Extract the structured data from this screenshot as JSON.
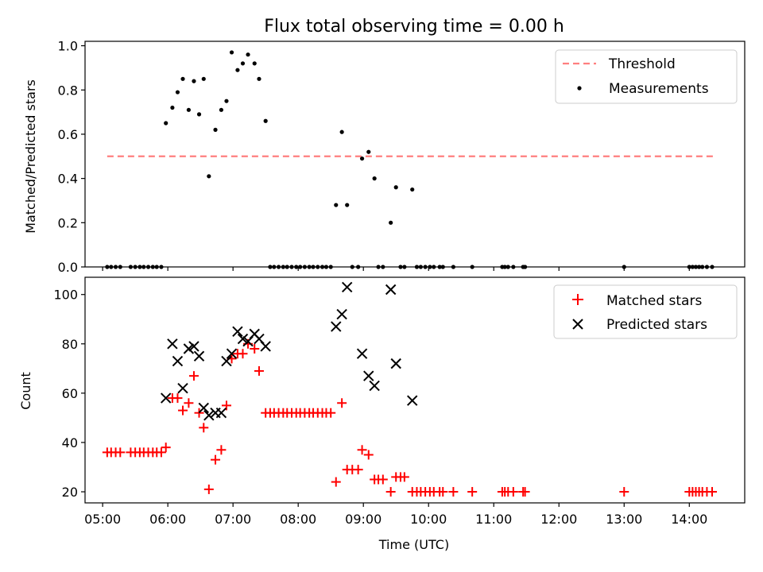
{
  "chart_data": [
    {
      "type": "scatter",
      "title": "Flux total observing time = 0.00 h",
      "xlabel": "",
      "ylabel": "Matched/Predicted stars",
      "xlim": [
        4.73,
        14.85
      ],
      "ylim": [
        0.0,
        1.02
      ],
      "yticks": [
        0.0,
        0.2,
        0.4,
        0.6,
        0.8,
        1.0
      ],
      "ytick_labels": [
        "0.0",
        "0.2",
        "0.4",
        "0.6",
        "0.8",
        "1.0"
      ],
      "xticks": [
        5,
        6,
        7,
        8,
        9,
        10,
        11,
        12,
        13,
        14
      ],
      "legend_position": "top-right",
      "threshold": {
        "name": "Threshold",
        "color": "#ff7f7f",
        "value": 0.5,
        "x_range": [
          5.07,
          14.37
        ]
      },
      "series": [
        {
          "name": "Measurements",
          "marker": "dot",
          "color": "#000000",
          "x": [
            5.07,
            5.13,
            5.2,
            5.27,
            5.43,
            5.5,
            5.57,
            5.63,
            5.7,
            5.77,
            5.83,
            5.9,
            5.97,
            6.07,
            6.15,
            6.23,
            6.32,
            6.4,
            6.48,
            6.55,
            6.63,
            6.73,
            6.82,
            6.9,
            6.98,
            7.07,
            7.15,
            7.23,
            7.33,
            7.4,
            7.5,
            7.57,
            7.63,
            7.7,
            7.77,
            7.83,
            7.9,
            7.97,
            8.03,
            8.1,
            8.17,
            8.23,
            8.3,
            8.37,
            8.43,
            8.5,
            8.58,
            8.67,
            8.75,
            8.83,
            8.92,
            8.98,
            9.08,
            9.17,
            9.23,
            9.3,
            9.42,
            9.5,
            9.57,
            9.63,
            9.75,
            9.82,
            9.88,
            9.95,
            10.02,
            10.08,
            10.17,
            10.22,
            10.38,
            10.67,
            11.13,
            11.17,
            11.22,
            11.3,
            11.45,
            11.48,
            13.0,
            14.0,
            14.05,
            14.1,
            14.15,
            14.2,
            14.27,
            14.35
          ],
          "y": [
            0,
            0,
            0,
            0,
            0,
            0,
            0,
            0,
            0,
            0,
            0,
            0,
            0.65,
            0.72,
            0.79,
            0.85,
            0.71,
            0.84,
            0.69,
            0.85,
            0.41,
            0.62,
            0.71,
            0.75,
            0.97,
            0.89,
            0.92,
            0.96,
            0.92,
            0.85,
            0.66,
            0,
            0,
            0,
            0,
            0,
            0,
            0,
            0,
            0,
            0,
            0,
            0,
            0,
            0,
            0,
            0.28,
            0.61,
            0.28,
            0,
            0,
            0.49,
            0.52,
            0.4,
            0,
            0,
            0.2,
            0.36,
            0,
            0,
            0.35,
            0,
            0,
            0,
            0,
            0,
            0,
            0,
            0,
            0,
            0,
            0,
            0,
            0,
            0,
            0,
            0,
            0,
            0,
            0,
            0,
            0,
            0,
            0
          ]
        }
      ]
    },
    {
      "type": "scatter",
      "title": "",
      "xlabel": "Time (UTC)",
      "ylabel": "Count",
      "xlim": [
        4.73,
        14.85
      ],
      "ylim": [
        15.5,
        107
      ],
      "yticks": [
        20,
        40,
        60,
        80,
        100
      ],
      "ytick_labels": [
        "20",
        "40",
        "60",
        "80",
        "100"
      ],
      "xticks": [
        5,
        6,
        7,
        8,
        9,
        10,
        11,
        12,
        13,
        14
      ],
      "xtick_labels": [
        "05:00",
        "06:00",
        "07:00",
        "08:00",
        "09:00",
        "10:00",
        "11:00",
        "12:00",
        "13:00",
        "14:00"
      ],
      "legend_position": "top-right",
      "series": [
        {
          "name": "Matched stars",
          "marker": "plus",
          "color": "#ff0000",
          "x": [
            5.07,
            5.13,
            5.2,
            5.27,
            5.43,
            5.5,
            5.57,
            5.63,
            5.7,
            5.77,
            5.83,
            5.9,
            5.97,
            6.07,
            6.15,
            6.23,
            6.32,
            6.4,
            6.48,
            6.55,
            6.63,
            6.73,
            6.82,
            6.9,
            6.98,
            7.07,
            7.15,
            7.23,
            7.33,
            7.4,
            7.5,
            7.57,
            7.63,
            7.7,
            7.77,
            7.83,
            7.9,
            7.97,
            8.03,
            8.1,
            8.17,
            8.23,
            8.3,
            8.37,
            8.43,
            8.5,
            8.58,
            8.67,
            8.75,
            8.83,
            8.92,
            8.98,
            9.08,
            9.17,
            9.23,
            9.3,
            9.42,
            9.5,
            9.57,
            9.63,
            9.75,
            9.82,
            9.88,
            9.95,
            10.02,
            10.08,
            10.17,
            10.22,
            10.38,
            10.67,
            11.13,
            11.17,
            11.22,
            11.3,
            11.45,
            11.48,
            13.0,
            14.0,
            14.05,
            14.1,
            14.15,
            14.2,
            14.27,
            14.35
          ],
          "y": [
            36,
            36,
            36,
            36,
            36,
            36,
            36,
            36,
            36,
            36,
            36,
            36,
            38,
            58,
            58,
            53,
            56,
            67,
            52,
            46,
            21,
            33,
            37,
            55,
            74,
            76,
            76,
            80,
            78,
            69,
            52,
            52,
            52,
            52,
            52,
            52,
            52,
            52,
            52,
            52,
            52,
            52,
            52,
            52,
            52,
            52,
            24,
            56,
            29,
            29,
            29,
            37,
            35,
            25,
            25,
            25,
            20,
            26,
            26,
            26,
            20,
            20,
            20,
            20,
            20,
            20,
            20,
            20,
            20,
            20,
            20,
            20,
            20,
            20,
            20,
            20,
            20,
            20,
            20,
            20,
            20,
            20,
            20,
            20
          ]
        },
        {
          "name": "Predicted stars",
          "marker": "x",
          "color": "#000000",
          "x": [
            5.97,
            6.07,
            6.15,
            6.23,
            6.32,
            6.4,
            6.48,
            6.55,
            6.63,
            6.73,
            6.82,
            6.9,
            6.98,
            7.07,
            7.15,
            7.23,
            7.33,
            7.4,
            7.5,
            8.58,
            8.67,
            8.75,
            8.98,
            9.08,
            9.17,
            9.42,
            9.5,
            9.75
          ],
          "y": [
            58,
            80,
            73,
            62,
            78,
            79,
            75,
            54,
            51,
            52,
            52,
            73,
            76,
            85,
            82,
            81,
            84,
            82,
            79,
            87,
            92,
            103,
            76,
            67,
            63,
            102,
            72,
            57
          ]
        }
      ]
    }
  ]
}
